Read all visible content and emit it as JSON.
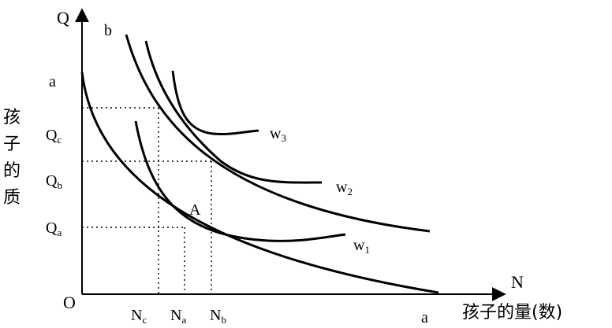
{
  "axes": {
    "y_letter": "Q",
    "x_letter": "N",
    "origin": "O",
    "y_title_chars": [
      "孩",
      "子",
      "的",
      "质"
    ],
    "x_title": "孩子的量(数)"
  },
  "budget_lines": {
    "a_label": "a",
    "b_label": "b",
    "a_x_label": "a"
  },
  "quality_ticks": {
    "qc": {
      "main": "Q",
      "sub": "c"
    },
    "qb": {
      "main": "Q",
      "sub": "b"
    },
    "qa": {
      "main": "Q",
      "sub": "a"
    }
  },
  "quantity_ticks": {
    "nc": {
      "main": "N",
      "sub": "c"
    },
    "na": {
      "main": "N",
      "sub": "a"
    },
    "nb": {
      "main": "N",
      "sub": "b"
    }
  },
  "points": {
    "a": "A"
  },
  "indifference_curves": {
    "w1": {
      "main": "w",
      "sub": "1"
    },
    "w2": {
      "main": "w",
      "sub": "2"
    },
    "w3": {
      "main": "w",
      "sub": "3"
    }
  }
}
